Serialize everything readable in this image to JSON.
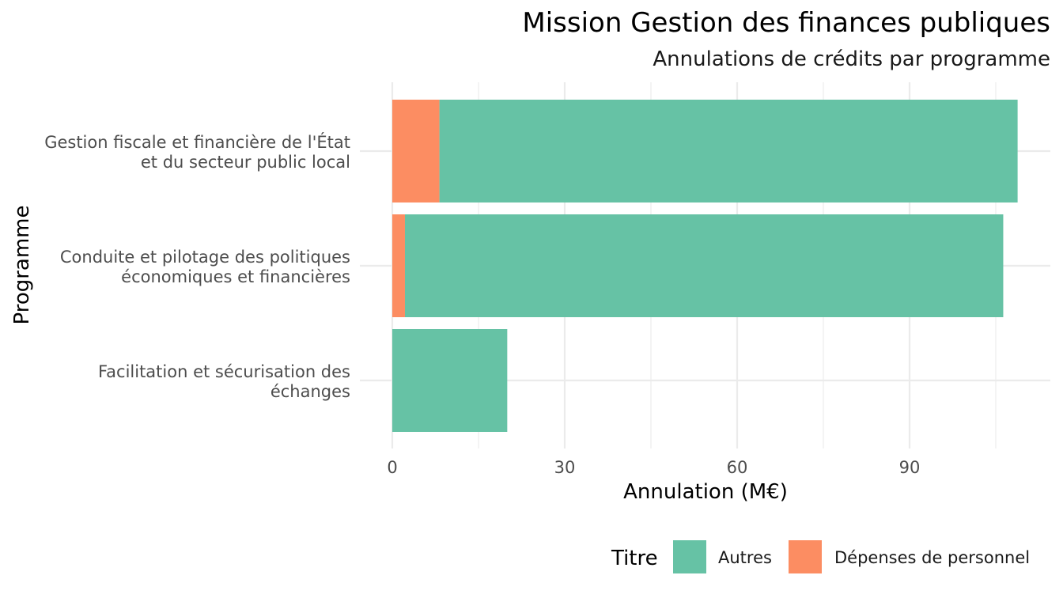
{
  "chart_data": {
    "type": "bar",
    "orientation": "horizontal",
    "stacked": true,
    "title": "Mission Gestion des finances publiques",
    "subtitle": "Annulations de crédits par programme",
    "xlabel": "Annulation (M€)",
    "ylabel": "Programme",
    "xlim": [
      0,
      114
    ],
    "x_ticks": [
      "0",
      "30",
      "60",
      "90"
    ],
    "x_tick_values": [
      0,
      30,
      60,
      90
    ],
    "grid": true,
    "categories": [
      [
        "Gestion fiscale et financière de l'État",
        "et du secteur public local"
      ],
      [
        "Conduite et pilotage des politiques",
        "économiques et financières"
      ],
      [
        "Facilitation et sécurisation des",
        "échanges"
      ]
    ],
    "series": [
      {
        "name": "Dépenses de personnel",
        "color": "#fc8d62",
        "values": [
          8.2,
          2.2,
          0
        ]
      },
      {
        "name": "Autres",
        "color": "#66c2a5",
        "values": [
          100.6,
          104.1,
          20.0
        ]
      }
    ],
    "legend": {
      "title": "Titre",
      "position": "bottom-right",
      "entries": [
        {
          "label": "Autres",
          "color": "#66c2a5"
        },
        {
          "label": "Dépenses de personnel",
          "color": "#fc8d62"
        }
      ]
    }
  }
}
